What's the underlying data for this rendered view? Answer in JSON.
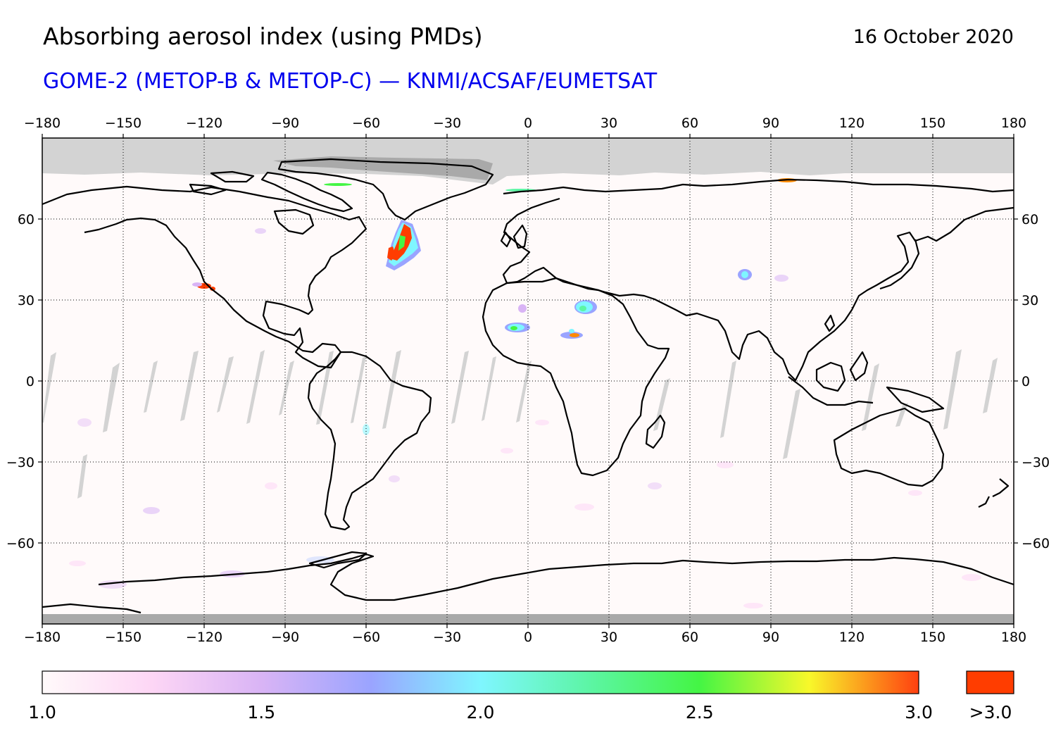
{
  "header": {
    "title": "Absorbing aerosol index (using PMDs)",
    "date": "16 October 2020",
    "subtitle": "GOME-2 (METOP-B & METOP-C) — KNMI/ACSAF/EUMETSAT"
  },
  "map": {
    "projection": "equirectangular",
    "lon_range": [
      -180,
      180
    ],
    "lat_range": [
      -90,
      90
    ],
    "x_ticks": [
      "−180",
      "−150",
      "−120",
      "−90",
      "−60",
      "−30",
      "0",
      "30",
      "60",
      "90",
      "120",
      "150",
      "180"
    ],
    "y_ticks": [
      "60",
      "30",
      "0",
      "−30",
      "−60"
    ],
    "grid": "dotted",
    "colors": {
      "no_data": "#d3d3d3",
      "night_polar": "#a9a9a9",
      "background": "#fffafa",
      "coast": "#000000"
    },
    "aerosol_hotspots": [
      {
        "region": "North Atlantic plume",
        "lon": -47,
        "lat": 52,
        "level": 3.0
      },
      {
        "region": "California",
        "lon": -119,
        "lat": 35,
        "level": 3.0
      },
      {
        "region": "Sahara",
        "lon": 20,
        "lat": 26,
        "level": 2.2
      },
      {
        "region": "West Africa",
        "lon": -5,
        "lat": 20,
        "level": 2.4
      },
      {
        "region": "Chad",
        "lon": 17,
        "lat": 18,
        "level": 2.8
      },
      {
        "region": "Himalaya foothills",
        "lon": 80,
        "lat": 38,
        "level": 1.9
      },
      {
        "region": "Siberia",
        "lon": 95,
        "lat": 74,
        "level": 2.6
      }
    ]
  },
  "colorbar": {
    "min": 1.0,
    "max": 3.0,
    "tick_labels": [
      "1.0",
      "1.5",
      "2.0",
      "2.5",
      "3.0"
    ],
    "over_label": ">3.0",
    "stops": [
      {
        "v": 1.0,
        "c": "#fffafa"
      },
      {
        "v": 1.25,
        "c": "#fdd6f5"
      },
      {
        "v": 1.5,
        "c": "#d9b4f5"
      },
      {
        "v": 1.75,
        "c": "#9aa4ff"
      },
      {
        "v": 2.0,
        "c": "#7ff6ff"
      },
      {
        "v": 2.25,
        "c": "#5cf5a4"
      },
      {
        "v": 2.5,
        "c": "#44f544"
      },
      {
        "v": 2.75,
        "c": "#f8f82a"
      },
      {
        "v": 3.0,
        "c": "#ff4010"
      }
    ],
    "over_color": "#ff3d00"
  }
}
